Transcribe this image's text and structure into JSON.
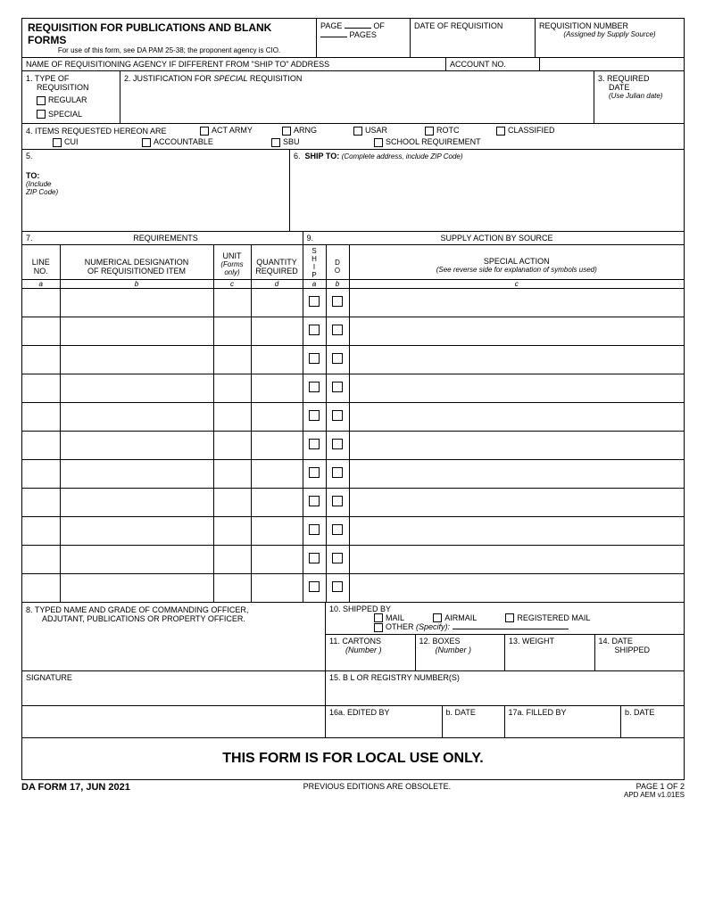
{
  "header": {
    "title": "REQUISITION FOR PUBLICATIONS AND BLANK FORMS",
    "subtitle": "For use of this form, see DA PAM 25-38; the proponent agency is CIO.",
    "page_label": "PAGE",
    "of_label": "OF",
    "pages_label": "PAGES",
    "date_req_label": "DATE OF REQUISITION",
    "req_num_label": "REQUISITION NUMBER",
    "req_num_sub": "(Assigned by Supply Source)"
  },
  "row2": {
    "name_agency": "NAME OF REQUISITIONING AGENCY IF DIFFERENT FROM \"SHIP TO\" ADDRESS",
    "account_no": "ACCOUNT NO."
  },
  "section1": {
    "label": "1.  TYPE OF",
    "label2": "REQUISITION",
    "opt_regular": "REGULAR",
    "opt_special": "SPECIAL"
  },
  "section2": {
    "label": "2.  JUSTIFICATION FOR ",
    "special": "SPECIAL",
    "label2": " REQUISITION"
  },
  "section3": {
    "label": "3.  REQUIRED",
    "label2": "DATE",
    "sub": "(Use Julian date)"
  },
  "section4": {
    "label": "4.  ITEMS REQUESTED HEREON ARE",
    "opts_top": [
      "ACT ARMY",
      "ARNG",
      "USAR",
      "ROTC",
      "CLASSIFIED"
    ],
    "opts_bot": [
      "CUI",
      "ACCOUNTABLE",
      "SBU",
      "SCHOOL REQUIREMENT"
    ]
  },
  "section5": {
    "num": "5.",
    "to": "TO:",
    "sub1": "(Include",
    "sub2": "ZIP Code)"
  },
  "section6": {
    "num": "6.",
    "ship": "SHIP TO:",
    "sub": "(Complete address, include ZIP Code)"
  },
  "section7": {
    "num": "7.",
    "title": "REQUIREMENTS",
    "col_line": "LINE",
    "col_line2": "NO.",
    "col_desig": "NUMERICAL DESIGNATION",
    "col_desig2": "OF REQUISITIONED ITEM",
    "col_unit": "UNIT",
    "col_unit_sub": "(Forms",
    "col_unit_sub2": "only)",
    "col_qty": "QUANTITY",
    "col_qty2": "REQUIRED",
    "sub_a": "a",
    "sub_b": "b",
    "sub_c": "c",
    "sub_d": "d"
  },
  "section9": {
    "num": "9.",
    "title": "SUPPLY ACTION BY SOURCE",
    "ship_letters": "SHIP",
    "do_letters": "DO",
    "sa": "SPECIAL ACTION",
    "sa_sub": "(See reverse side for explanation of symbols used)",
    "sub_a": "a",
    "sub_b": "b",
    "sub_c": "c"
  },
  "section8": {
    "line1": "8. TYPED NAME AND GRADE OF COMMANDING OFFICER,",
    "line2": "ADJUTANT, PUBLICATIONS OR PROPERTY OFFICER."
  },
  "section10": {
    "label": "10. SHIPPED BY",
    "mail": "MAIL",
    "airmail": "AIRMAIL",
    "registered": "REGISTERED MAIL",
    "other": "OTHER",
    "specify": "(Specify):"
  },
  "section11": {
    "label": "11. CARTONS",
    "sub": "(Number )"
  },
  "section12": {
    "label": "12. BOXES",
    "sub": "(Number )"
  },
  "section13": {
    "label": "13. WEIGHT"
  },
  "section14": {
    "label": "14. DATE",
    "label2": "SHIPPED"
  },
  "signature": "SIGNATURE",
  "section15": "15. B L OR REGISTRY NUMBER(S)",
  "section16a": "16a. EDITED BY",
  "section16b": "b. DATE",
  "section17a": "17a. FILLED BY",
  "section17b": "b. DATE",
  "local_use": "THIS FORM IS FOR LOCAL USE ONLY.",
  "footer": {
    "form_id": "DA FORM 17, JUN 2021",
    "obsolete": "PREVIOUS EDITIONS ARE OBSOLETE.",
    "page": "PAGE 1 OF 2",
    "ver": "APD AEM  v1.01ES"
  },
  "item_rows": 11
}
